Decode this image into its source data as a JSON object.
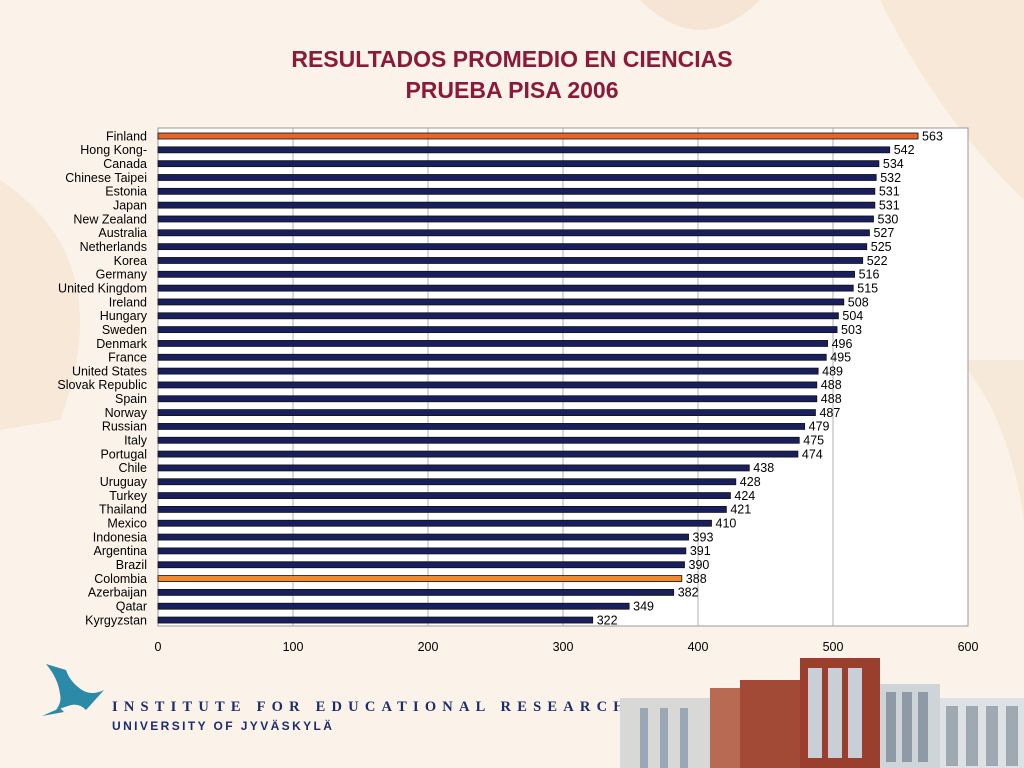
{
  "title": {
    "line1": "RESULTADOS PROMEDIO EN CIENCIAS",
    "line2": "PRUEBA PISA 2006"
  },
  "footer": {
    "institute": "INSTITUTE FOR EDUCATIONAL RESEARCH",
    "university": "UNIVERSITY OF JYVÄSKYLÄ",
    "logo_icon": "bird-logo-icon"
  },
  "colors": {
    "title": "#8b1a3a",
    "bar_default": "#191e5e",
    "bar_highlight": "#f08a2c",
    "bar_finland": "#e8642a",
    "logo": "#2a8aa8",
    "institute_text": "#1b2d6b"
  },
  "chart_data": {
    "type": "bar",
    "orientation": "horizontal",
    "categories": [
      "Finland",
      "Hong Kong-",
      "Canada",
      "Chinese Taipei",
      "Estonia",
      "Japan",
      "New Zealand",
      "Australia",
      "Netherlands",
      "Korea",
      "Germany",
      "United Kingdom",
      "Ireland",
      "Hungary",
      "Sweden",
      "Denmark",
      "France",
      "United States",
      "Slovak Republic",
      "Spain",
      "Norway",
      "Russian",
      "Italy",
      "Portugal",
      "Chile",
      "Uruguay",
      "Turkey",
      "Thailand",
      "Mexico",
      "Indonesia",
      "Argentina",
      "Brazil",
      "Colombia",
      "Azerbaijan",
      "Qatar",
      "Kyrgyzstan"
    ],
    "values": [
      563,
      542,
      534,
      532,
      531,
      531,
      530,
      527,
      525,
      522,
      516,
      515,
      508,
      504,
      503,
      496,
      495,
      489,
      488,
      488,
      487,
      479,
      475,
      474,
      438,
      428,
      424,
      421,
      410,
      393,
      391,
      390,
      388,
      382,
      349,
      322
    ],
    "highlighted": [
      "Finland",
      "Colombia"
    ],
    "xlim": [
      0,
      600
    ],
    "xticks": [
      0,
      100,
      200,
      300,
      400,
      500,
      600
    ],
    "grid": "vertical",
    "legend": "none",
    "xlabel": "",
    "ylabel": ""
  }
}
